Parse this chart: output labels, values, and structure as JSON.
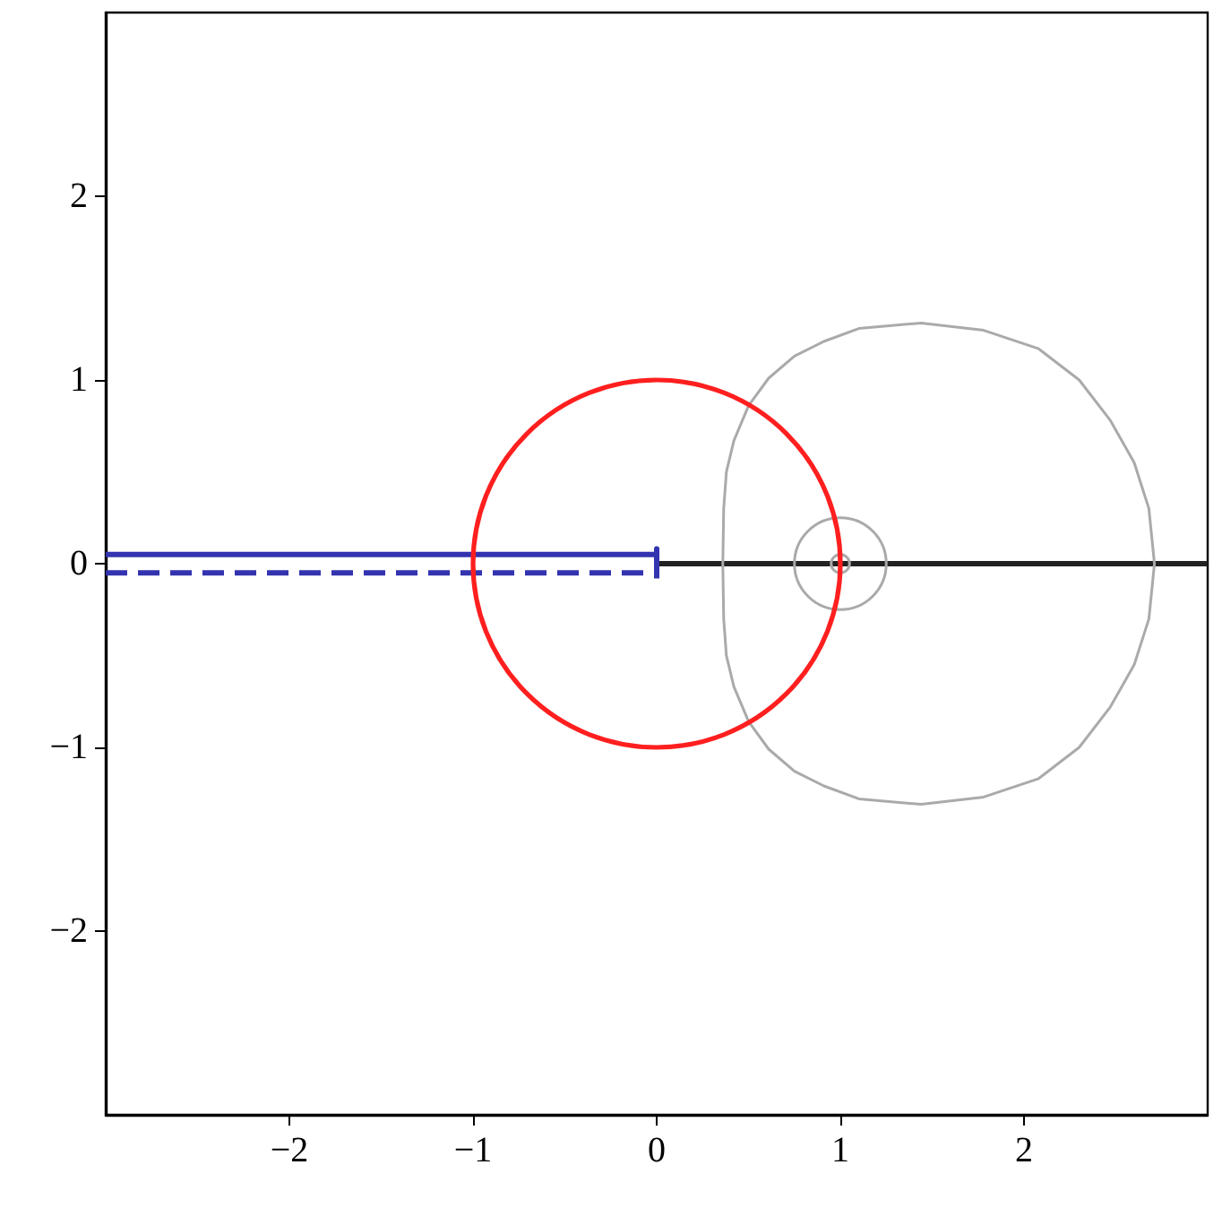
{
  "chart_data": {
    "type": "line",
    "xlim": [
      -3,
      3
    ],
    "ylim": [
      -3,
      3
    ],
    "xticks": [
      {
        "value": -2,
        "label": "−2"
      },
      {
        "value": -1,
        "label": "−1"
      },
      0,
      1,
      2
    ],
    "yticks": [
      {
        "value": -2,
        "label": "−2"
      },
      {
        "value": -1,
        "label": "−1"
      },
      0,
      1,
      2
    ],
    "grid": false,
    "series": [
      {
        "color": "#3333b0",
        "line_style": "solid",
        "x": [
          -3,
          0,
          0,
          0
        ],
        "values": [
          0.05,
          0.05,
          0.08,
          -0.08
        ]
      },
      {
        "color": "#3333b0",
        "line_style": "dashed",
        "x": [
          -3,
          0
        ],
        "values": [
          -0.05,
          -0.05
        ]
      },
      {
        "color": "#222222",
        "line_style": "solid",
        "x": [
          0,
          3
        ],
        "values": [
          0,
          0
        ]
      }
    ]
  }
}
